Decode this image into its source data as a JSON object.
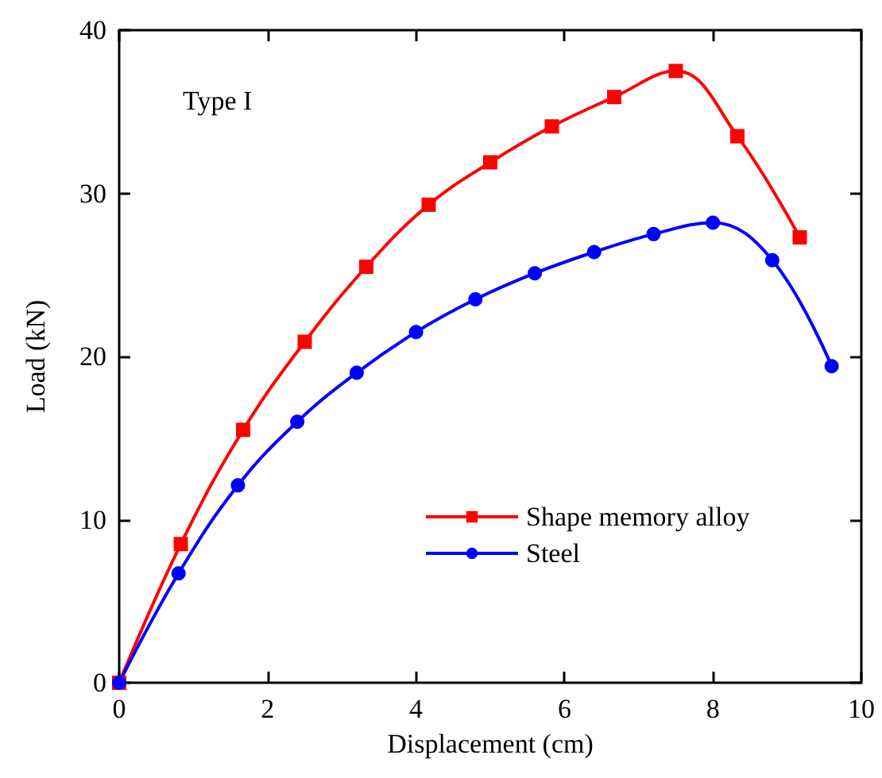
{
  "chart_data": {
    "type": "line",
    "xlabel": "Displacement (cm)",
    "ylabel": "Load (kN)",
    "annotations": [
      "Type I"
    ],
    "xlim": [
      0,
      10
    ],
    "xticks": [
      0,
      2,
      4,
      6,
      8,
      10
    ],
    "ylim": [
      0,
      40
    ],
    "yticks": [
      0,
      10,
      20,
      30,
      40
    ],
    "grid": false,
    "legend": "bottom right",
    "line_style": "solid",
    "series": [
      {
        "name": "Shape memory alloy",
        "color": "#ff0000",
        "marker": "square",
        "x": [
          0,
          0.83,
          1.67,
          2.5,
          3.33,
          4.17,
          5,
          5.83,
          6.67,
          7.5,
          8.33,
          9.17
        ],
        "values": [
          0,
          8.5,
          15.5,
          20.9,
          25.5,
          29.3,
          31.9,
          34.1,
          35.9,
          37.5,
          33.5,
          27.3
        ]
      },
      {
        "name": "Steel",
        "color": "#0000ff",
        "marker": "circle",
        "x": [
          0,
          0.8,
          1.6,
          2.4,
          3.2,
          4,
          4.8,
          5.6,
          6.4,
          7.2,
          8,
          8.8,
          9.6
        ],
        "values": [
          0,
          6.7,
          12.1,
          16,
          19,
          21.5,
          23.5,
          25.1,
          26.4,
          27.5,
          28.2,
          25.9,
          19.4
        ]
      }
    ]
  }
}
